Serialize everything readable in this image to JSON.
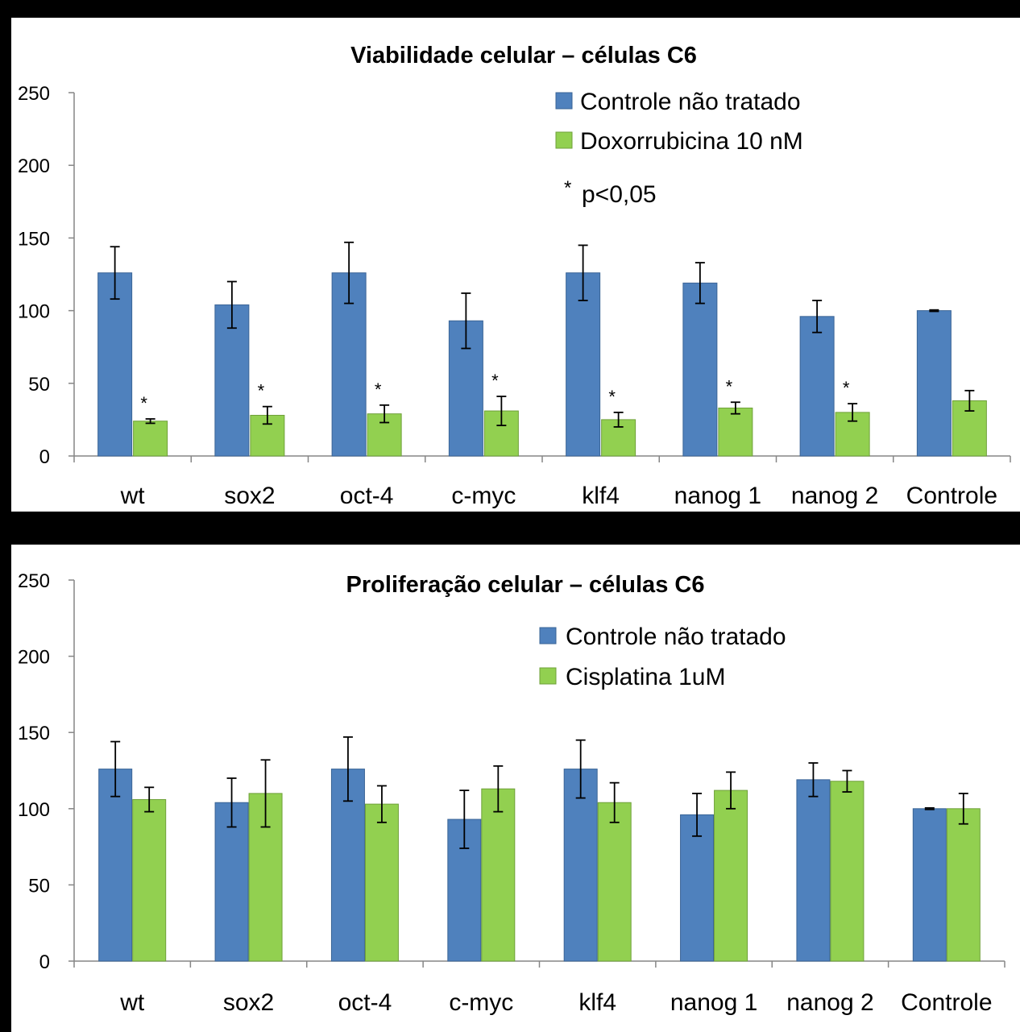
{
  "colors": {
    "series1": "#4F81BD",
    "series2": "#92D050",
    "series1_edge": "#3A6496",
    "series2_edge": "#6FA03A"
  },
  "chart_data": [
    {
      "type": "bar",
      "title": "Viabilidade celular – células C6",
      "categories": [
        "wt",
        "sox2",
        "oct-4",
        "c-myc",
        "klf4",
        "nanog 1",
        "nanog 2",
        "Controle"
      ],
      "ylim": [
        0,
        250
      ],
      "yticks": [
        0,
        50,
        100,
        150,
        200,
        250
      ],
      "grid": false,
      "legend_position": "top-right",
      "annotation": "p<0,05",
      "annotation_symbol": "*",
      "series": [
        {
          "name": "Controle não tratado",
          "values": [
            126,
            104,
            126,
            93,
            126,
            119,
            96,
            100
          ],
          "errors": [
            18,
            16,
            21,
            19,
            19,
            14,
            11,
            0.5
          ],
          "markers": [
            "",
            "",
            "",
            "",
            "",
            "",
            "",
            ""
          ]
        },
        {
          "name": "Doxorrubicina 10 nM",
          "values": [
            24,
            28,
            29,
            31,
            25,
            33,
            30,
            38
          ],
          "errors": [
            1.5,
            6,
            6,
            10,
            5,
            4,
            6,
            7
          ],
          "markers": [
            "*",
            "*",
            "*",
            "*",
            "*",
            "*",
            "*",
            ""
          ]
        }
      ]
    },
    {
      "type": "bar",
      "title": "Proliferação celular – células C6",
      "categories": [
        "wt",
        "sox2",
        "oct-4",
        "c-myc",
        "klf4",
        "nanog 1",
        "nanog 2",
        "Controle"
      ],
      "ylim": [
        0,
        250
      ],
      "yticks": [
        0,
        50,
        100,
        150,
        200,
        250
      ],
      "grid": false,
      "legend_position": "top-right",
      "series": [
        {
          "name": "Controle não tratado",
          "values": [
            126,
            104,
            126,
            93,
            126,
            96,
            119,
            100
          ],
          "errors": [
            18,
            16,
            21,
            19,
            19,
            14,
            11,
            0.5
          ],
          "markers": [
            "",
            "",
            "",
            "",
            "",
            "",
            "",
            ""
          ]
        },
        {
          "name": "Cisplatina 1uM",
          "values": [
            106,
            110,
            103,
            113,
            104,
            112,
            118,
            100
          ],
          "errors": [
            8,
            22,
            12,
            15,
            13,
            12,
            7,
            10
          ],
          "markers": [
            "",
            "",
            "",
            "",
            "",
            "",
            "",
            ""
          ]
        }
      ]
    }
  ]
}
